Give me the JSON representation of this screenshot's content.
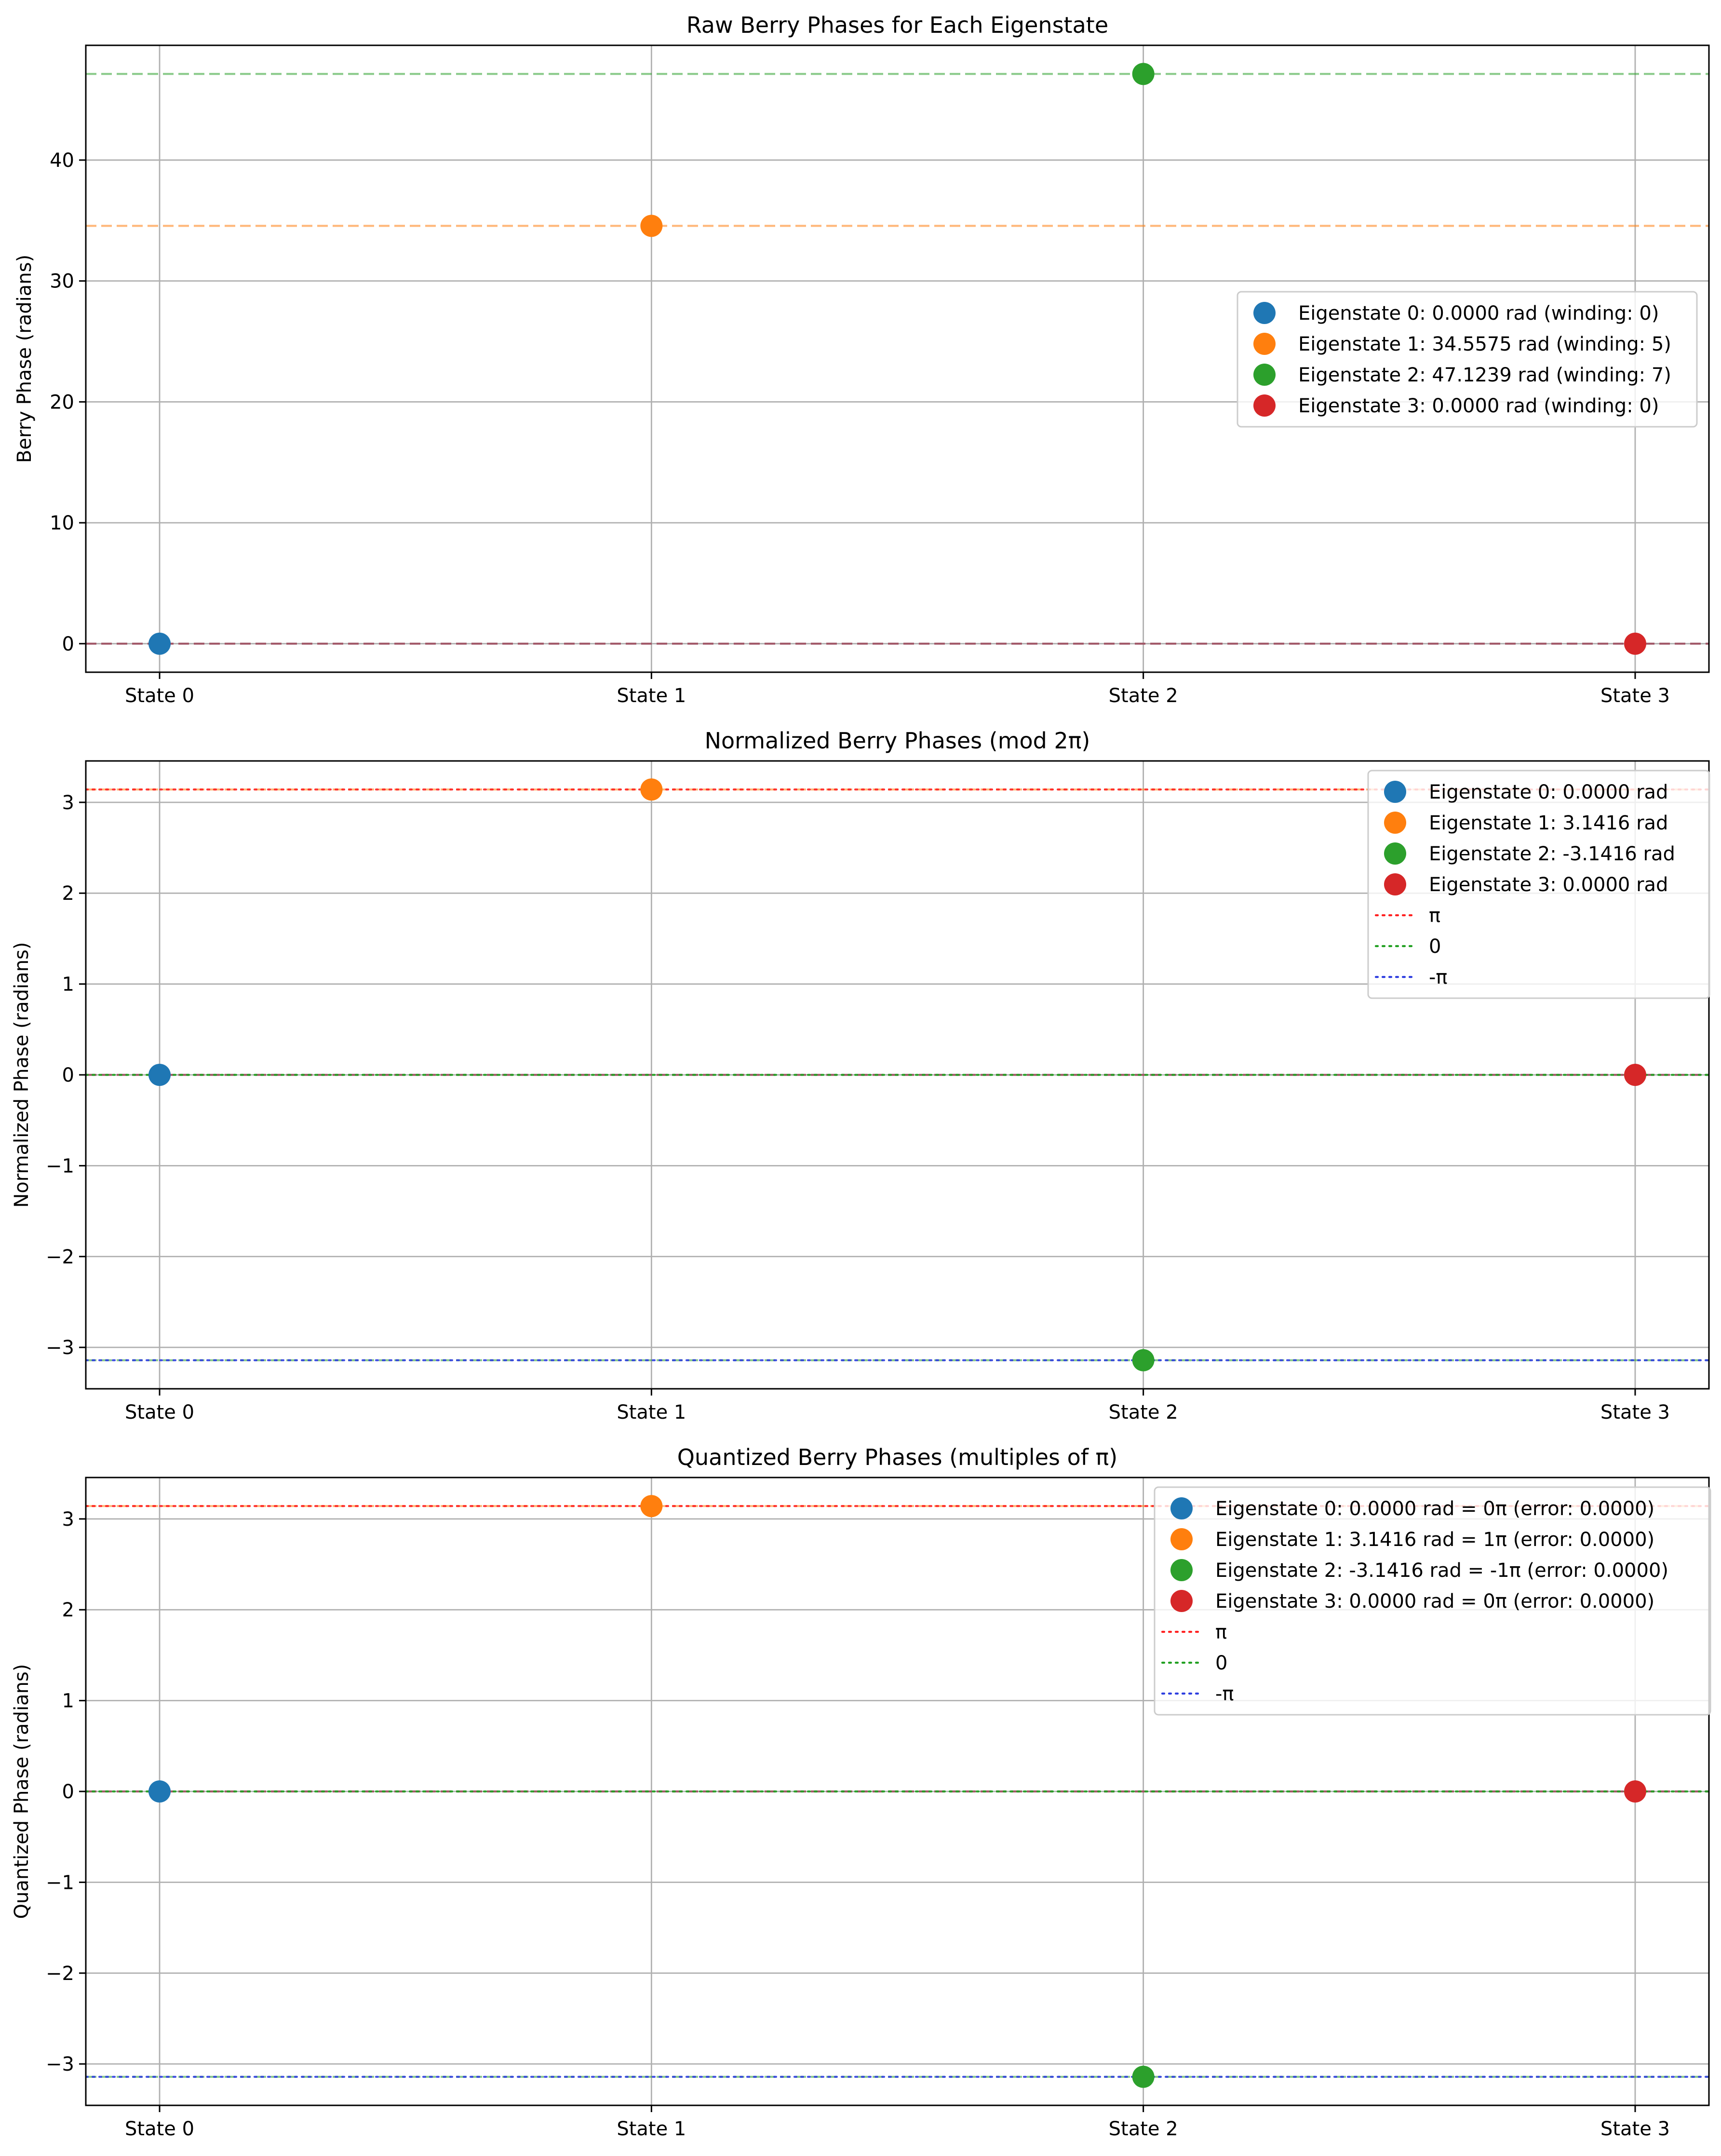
{
  "chart_data": [
    {
      "type": "scatter",
      "title": "Raw Berry Phases for Each Eigenstate",
      "xlabel": "",
      "ylabel": "Berry Phase (radians)",
      "categories": [
        "State 0",
        "State 1",
        "State 2",
        "State 3"
      ],
      "xlim": [
        -0.15,
        3.15
      ],
      "ylim": [
        -2.36,
        49.49
      ],
      "yticks": [
        {
          "value": 0,
          "label": "0"
        },
        {
          "value": 10,
          "label": "10"
        },
        {
          "value": 20,
          "label": "20"
        },
        {
          "value": 30,
          "label": "30"
        },
        {
          "value": 40,
          "label": "40"
        }
      ],
      "grid": true,
      "legend_position": "center-right",
      "series": [
        {
          "name": "Eigenstate 0: 0.0000 rad (winding: 0)",
          "x": 0,
          "value": 0.0,
          "color": "#1f77b4"
        },
        {
          "name": "Eigenstate 1: 34.5575 rad (winding: 5)",
          "x": 1,
          "value": 34.5575,
          "color": "#ff7f0e"
        },
        {
          "name": "Eigenstate 2: 47.1239 rad (winding: 7)",
          "x": 2,
          "value": 47.1239,
          "color": "#2ca02c"
        },
        {
          "name": "Eigenstate 3: 0.0000 rad (winding: 0)",
          "x": 3,
          "value": 0.0,
          "color": "#d62728"
        }
      ],
      "reference_lines": [
        {
          "value": 0.0,
          "color": "#1f77b4",
          "style": "dashed"
        },
        {
          "value": 34.5575,
          "color": "#ff7f0e",
          "style": "dashed"
        },
        {
          "value": 47.1239,
          "color": "#2ca02c",
          "style": "dashed"
        },
        {
          "value": 0.0,
          "color": "#d62728",
          "style": "dashed"
        }
      ]
    },
    {
      "type": "scatter",
      "title": "Normalized Berry Phases (mod 2π)",
      "xlabel": "",
      "ylabel": "Normalized Phase (radians)",
      "categories": [
        "State 0",
        "State 1",
        "State 2",
        "State 3"
      ],
      "xlim": [
        -0.15,
        3.15
      ],
      "ylim": [
        -3.4558,
        3.4558
      ],
      "yticks": [
        {
          "value": -3,
          "label": "−3"
        },
        {
          "value": -2,
          "label": "−2"
        },
        {
          "value": -1,
          "label": "−1"
        },
        {
          "value": 0,
          "label": "0"
        },
        {
          "value": 1,
          "label": "1"
        },
        {
          "value": 2,
          "label": "2"
        },
        {
          "value": 3,
          "label": "3"
        }
      ],
      "grid": true,
      "legend_position": "upper-right",
      "series": [
        {
          "name": "Eigenstate 0: 0.0000 rad",
          "x": 0,
          "value": 0.0,
          "color": "#1f77b4"
        },
        {
          "name": "Eigenstate 1: 3.1416 rad",
          "x": 1,
          "value": 3.1416,
          "color": "#ff7f0e"
        },
        {
          "name": "Eigenstate 2: -3.1416 rad",
          "x": 2,
          "value": -3.1416,
          "color": "#2ca02c"
        },
        {
          "name": "Eigenstate 3: 0.0000 rad",
          "x": 3,
          "value": 0.0,
          "color": "#d62728"
        }
      ],
      "dashed_lines": [
        {
          "value": 0.0,
          "color": "#1f77b4"
        },
        {
          "value": 3.1416,
          "color": "#ff7f0e"
        },
        {
          "value": -3.1416,
          "color": "#2ca02c"
        },
        {
          "value": 0.0,
          "color": "#d62728"
        }
      ],
      "reference_lines": [
        {
          "name": "π",
          "value": 3.1416,
          "color": "#ff2020",
          "style": "dotted"
        },
        {
          "name": "0",
          "value": 0.0,
          "color": "#22a022",
          "style": "dotted"
        },
        {
          "name": "-π",
          "value": -3.1416,
          "color": "#2f3fe0",
          "style": "dotted"
        }
      ]
    },
    {
      "type": "scatter",
      "title": "Quantized Berry Phases (multiples of π)",
      "xlabel": "",
      "ylabel": "Quantized Phase (radians)",
      "categories": [
        "State 0",
        "State 1",
        "State 2",
        "State 3"
      ],
      "xlim": [
        -0.15,
        3.15
      ],
      "ylim": [
        -3.4558,
        3.4558
      ],
      "yticks": [
        {
          "value": -3,
          "label": "−3"
        },
        {
          "value": -2,
          "label": "−2"
        },
        {
          "value": -1,
          "label": "−1"
        },
        {
          "value": 0,
          "label": "0"
        },
        {
          "value": 1,
          "label": "1"
        },
        {
          "value": 2,
          "label": "2"
        },
        {
          "value": 3,
          "label": "3"
        }
      ],
      "grid": true,
      "legend_position": "upper-right",
      "series": [
        {
          "name": "Eigenstate 0: 0.0000 rad = 0π (error: 0.0000)",
          "x": 0,
          "value": 0.0,
          "color": "#1f77b4"
        },
        {
          "name": "Eigenstate 1: 3.1416 rad = 1π (error: 0.0000)",
          "x": 1,
          "value": 3.1416,
          "color": "#ff7f0e"
        },
        {
          "name": "Eigenstate 2: -3.1416 rad = -1π (error: 0.0000)",
          "x": 2,
          "value": -3.1416,
          "color": "#2ca02c"
        },
        {
          "name": "Eigenstate 3: 0.0000 rad = 0π (error: 0.0000)",
          "x": 3,
          "value": 0.0,
          "color": "#d62728"
        }
      ],
      "dashed_lines": [
        {
          "value": 0.0,
          "color": "#1f77b4"
        },
        {
          "value": 3.1416,
          "color": "#ff7f0e"
        },
        {
          "value": -3.1416,
          "color": "#2ca02c"
        },
        {
          "value": 0.0,
          "color": "#d62728"
        }
      ],
      "reference_lines": [
        {
          "name": "π",
          "value": 3.1416,
          "color": "#ff2020",
          "style": "dotted"
        },
        {
          "name": "0",
          "value": 0.0,
          "color": "#22a022",
          "style": "dotted"
        },
        {
          "name": "-π",
          "value": -3.1416,
          "color": "#2f3fe0",
          "style": "dotted"
        }
      ]
    }
  ]
}
